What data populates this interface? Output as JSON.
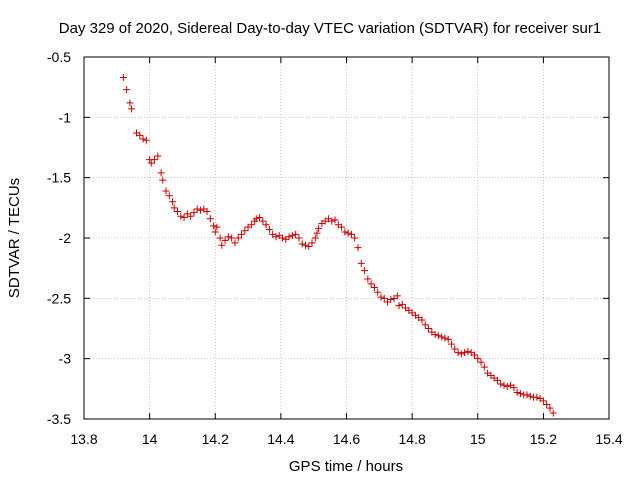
{
  "chart_data": {
    "type": "scatter",
    "title": "Day 329 of 2020, Sidereal Day-to-day VTEC variation (SDTVAR) for receiver sur1",
    "xlabel": "GPS time / hours",
    "ylabel": "SDTVAR / TECUs",
    "xlim": [
      13.8,
      15.4
    ],
    "ylim": [
      -3.5,
      -0.5
    ],
    "xticks": [
      13.8,
      14.0,
      14.2,
      14.4,
      14.6,
      14.8,
      15.0,
      15.2,
      15.4
    ],
    "xtick_labels": [
      "13.8",
      "14",
      "14.2",
      "14.4",
      "14.6",
      "14.8",
      "15",
      "15.2",
      "15.4"
    ],
    "yticks": [
      -0.5,
      -1.0,
      -1.5,
      -2.0,
      -2.5,
      -3.0,
      -3.5
    ],
    "ytick_labels": [
      "-0.5",
      "-1",
      "-1.5",
      "-2",
      "-2.5",
      "-3",
      "-3.5"
    ],
    "marker": "+",
    "color": "#cc0000",
    "grid": true,
    "series": [
      {
        "name": "SDTVAR",
        "points": [
          [
            13.92,
            -0.67
          ],
          [
            13.93,
            -0.77
          ],
          [
            13.94,
            -0.88
          ],
          [
            13.945,
            -0.93
          ],
          [
            13.96,
            -1.13
          ],
          [
            13.97,
            -1.15
          ],
          [
            13.98,
            -1.18
          ],
          [
            13.99,
            -1.19
          ],
          [
            14.0,
            -1.35
          ],
          [
            14.005,
            -1.38
          ],
          [
            14.015,
            -1.35
          ],
          [
            14.025,
            -1.32
          ],
          [
            14.035,
            -1.46
          ],
          [
            14.04,
            -1.52
          ],
          [
            14.05,
            -1.61
          ],
          [
            14.06,
            -1.65
          ],
          [
            14.07,
            -1.7
          ],
          [
            14.075,
            -1.75
          ],
          [
            14.085,
            -1.78
          ],
          [
            14.095,
            -1.82
          ],
          [
            14.105,
            -1.83
          ],
          [
            14.115,
            -1.8
          ],
          [
            14.125,
            -1.82
          ],
          [
            14.135,
            -1.79
          ],
          [
            14.145,
            -1.76
          ],
          [
            14.155,
            -1.77
          ],
          [
            14.165,
            -1.76
          ],
          [
            14.175,
            -1.78
          ],
          [
            14.185,
            -1.84
          ],
          [
            14.195,
            -1.9
          ],
          [
            14.2,
            -1.95
          ],
          [
            14.205,
            -1.91
          ],
          [
            14.215,
            -2.0
          ],
          [
            14.22,
            -2.06
          ],
          [
            14.23,
            -2.02
          ],
          [
            14.24,
            -1.99
          ],
          [
            14.25,
            -2.0
          ],
          [
            14.26,
            -2.04
          ],
          [
            14.27,
            -2.0
          ],
          [
            14.28,
            -1.97
          ],
          [
            14.29,
            -1.94
          ],
          [
            14.3,
            -1.91
          ],
          [
            14.31,
            -1.89
          ],
          [
            14.32,
            -1.86
          ],
          [
            14.325,
            -1.84
          ],
          [
            14.335,
            -1.83
          ],
          [
            14.345,
            -1.86
          ],
          [
            14.355,
            -1.89
          ],
          [
            14.365,
            -1.93
          ],
          [
            14.375,
            -1.97
          ],
          [
            14.385,
            -1.99
          ],
          [
            14.395,
            -1.98
          ],
          [
            14.405,
            -2.0
          ],
          [
            14.415,
            -2.01
          ],
          [
            14.425,
            -1.99
          ],
          [
            14.435,
            -1.98
          ],
          [
            14.445,
            -1.97
          ],
          [
            14.455,
            -2.0
          ],
          [
            14.465,
            -2.05
          ],
          [
            14.475,
            -2.06
          ],
          [
            14.485,
            -2.07
          ],
          [
            14.495,
            -2.04
          ],
          [
            14.505,
            -2.0
          ],
          [
            14.51,
            -1.96
          ],
          [
            14.515,
            -1.92
          ],
          [
            14.525,
            -1.88
          ],
          [
            14.535,
            -1.86
          ],
          [
            14.545,
            -1.84
          ],
          [
            14.555,
            -1.86
          ],
          [
            14.565,
            -1.85
          ],
          [
            14.575,
            -1.89
          ],
          [
            14.585,
            -1.91
          ],
          [
            14.595,
            -1.95
          ],
          [
            14.605,
            -1.96
          ],
          [
            14.615,
            -1.97
          ],
          [
            14.625,
            -2.0
          ],
          [
            14.635,
            -2.08
          ],
          [
            14.645,
            -2.21
          ],
          [
            14.655,
            -2.27
          ],
          [
            14.665,
            -2.34
          ],
          [
            14.675,
            -2.38
          ],
          [
            14.685,
            -2.41
          ],
          [
            14.695,
            -2.45
          ],
          [
            14.705,
            -2.49
          ],
          [
            14.715,
            -2.5
          ],
          [
            14.725,
            -2.53
          ],
          [
            14.735,
            -2.51
          ],
          [
            14.745,
            -2.5
          ],
          [
            14.755,
            -2.48
          ],
          [
            14.76,
            -2.56
          ],
          [
            14.77,
            -2.55
          ],
          [
            14.78,
            -2.58
          ],
          [
            14.79,
            -2.6
          ],
          [
            14.8,
            -2.62
          ],
          [
            14.81,
            -2.64
          ],
          [
            14.82,
            -2.66
          ],
          [
            14.83,
            -2.68
          ],
          [
            14.84,
            -2.72
          ],
          [
            14.85,
            -2.75
          ],
          [
            14.86,
            -2.78
          ],
          [
            14.87,
            -2.8
          ],
          [
            14.88,
            -2.81
          ],
          [
            14.89,
            -2.82
          ],
          [
            14.9,
            -2.83
          ],
          [
            14.91,
            -2.84
          ],
          [
            14.92,
            -2.88
          ],
          [
            14.93,
            -2.92
          ],
          [
            14.94,
            -2.95
          ],
          [
            14.95,
            -2.96
          ],
          [
            14.96,
            -2.95
          ],
          [
            14.97,
            -2.94
          ],
          [
            14.98,
            -2.95
          ],
          [
            14.99,
            -2.97
          ],
          [
            15.0,
            -3.0
          ],
          [
            15.01,
            -3.03
          ],
          [
            15.02,
            -3.07
          ],
          [
            15.03,
            -3.12
          ],
          [
            15.04,
            -3.14
          ],
          [
            15.05,
            -3.16
          ],
          [
            15.06,
            -3.18
          ],
          [
            15.07,
            -3.21
          ],
          [
            15.08,
            -3.22
          ],
          [
            15.09,
            -3.23
          ],
          [
            15.1,
            -3.22
          ],
          [
            15.11,
            -3.24
          ],
          [
            15.12,
            -3.28
          ],
          [
            15.13,
            -3.29
          ],
          [
            15.14,
            -3.3
          ],
          [
            15.15,
            -3.3
          ],
          [
            15.16,
            -3.31
          ],
          [
            15.17,
            -3.32
          ],
          [
            15.18,
            -3.32
          ],
          [
            15.19,
            -3.33
          ],
          [
            15.2,
            -3.35
          ],
          [
            15.21,
            -3.38
          ],
          [
            15.22,
            -3.41
          ],
          [
            15.23,
            -3.45
          ]
        ]
      }
    ]
  }
}
